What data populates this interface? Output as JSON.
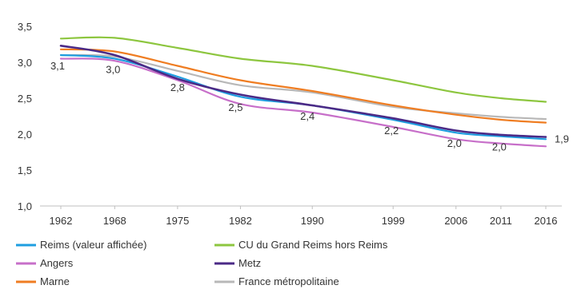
{
  "chart_data": {
    "type": "line",
    "title": "",
    "xlabel": "",
    "ylabel": "",
    "ylim": [
      1.0,
      3.5
    ],
    "yticks": [
      "3,5",
      "3,0",
      "2,5",
      "2,0",
      "1,5",
      "1,0"
    ],
    "x": [
      "1962",
      "1968",
      "1975",
      "1982",
      "1990",
      "1999",
      "2006",
      "2011",
      "2016"
    ],
    "grid": false,
    "legend_position": "bottom",
    "series": [
      {
        "name": "Reims (valeur affichée)",
        "color": "#1e9ee0",
        "values": [
          3.1,
          3.05,
          2.8,
          2.52,
          2.4,
          2.2,
          2.02,
          1.97,
          1.93
        ]
      },
      {
        "name": "CU du Grand Reims hors Reims",
        "color": "#8dc63f",
        "values": [
          3.33,
          3.34,
          3.2,
          3.05,
          2.95,
          2.75,
          2.58,
          2.5,
          2.45
        ]
      },
      {
        "name": "Angers",
        "color": "#c76fc9",
        "values": [
          3.05,
          3.02,
          2.75,
          2.42,
          2.3,
          2.1,
          1.93,
          1.87,
          1.83
        ]
      },
      {
        "name": "Metz",
        "color": "#4b2a86",
        "values": [
          3.23,
          3.1,
          2.77,
          2.55,
          2.4,
          2.22,
          2.05,
          1.99,
          1.96
        ]
      },
      {
        "name": "Marne",
        "color": "#ef7d22",
        "values": [
          3.18,
          3.15,
          2.95,
          2.75,
          2.6,
          2.4,
          2.27,
          2.2,
          2.16
        ]
      },
      {
        "name": "France métropolitaine",
        "color": "#b8b8b8",
        "values": [
          3.1,
          3.08,
          2.88,
          2.68,
          2.58,
          2.38,
          2.29,
          2.24,
          2.21
        ]
      }
    ],
    "data_labels": [
      {
        "x": "1962",
        "text": "3,1"
      },
      {
        "x": "1968",
        "text": "3,0"
      },
      {
        "x": "1975",
        "text": "2,8"
      },
      {
        "x": "1982",
        "text": "2,5"
      },
      {
        "x": "1990",
        "text": "2,4"
      },
      {
        "x": "1999",
        "text": "2,2"
      },
      {
        "x": "2006",
        "text": "2,0"
      },
      {
        "x": "2011",
        "text": "2,0"
      },
      {
        "x": "2016",
        "text": "1,9"
      }
    ]
  }
}
